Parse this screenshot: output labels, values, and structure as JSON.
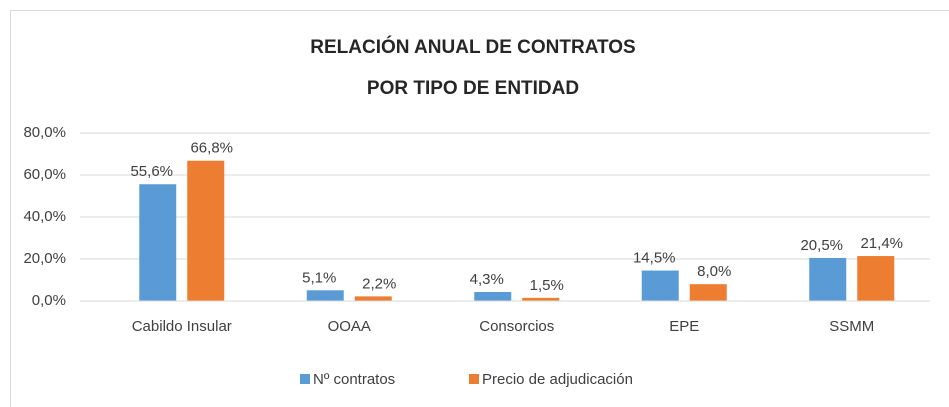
{
  "chart_data": {
    "type": "bar",
    "title": [
      "RELACIÓN ANUAL DE CONTRATOS",
      "POR TIPO DE ENTIDAD"
    ],
    "categories": [
      "Cabildo Insular",
      "OOAA",
      "Consorcios",
      "EPE",
      "SSMM"
    ],
    "series": [
      {
        "name": "Nº contratos",
        "color": "#5b9bd5",
        "values": [
          55.6,
          5.1,
          4.3,
          14.5,
          20.5
        ],
        "value_labels": [
          "55,6%",
          "5,1%",
          "4,3%",
          "14,5%",
          "20,5%"
        ]
      },
      {
        "name": "Precio de adjudicación",
        "color": "#ed7d31",
        "values": [
          66.8,
          2.2,
          1.5,
          8.0,
          21.4
        ],
        "value_labels": [
          "66,8%",
          "2,2%",
          "1,5%",
          "8,0%",
          "21,4%"
        ]
      }
    ],
    "ylim": [
      0,
      80
    ],
    "yticks": [
      {
        "value": 0,
        "label": "0,0%"
      },
      {
        "value": 20,
        "label": "20,0%"
      },
      {
        "value": 40,
        "label": "40,0%"
      },
      {
        "value": 60,
        "label": "60,0%"
      },
      {
        "value": 80,
        "label": "80,0%"
      }
    ],
    "grid": true,
    "legend": "bottom"
  }
}
